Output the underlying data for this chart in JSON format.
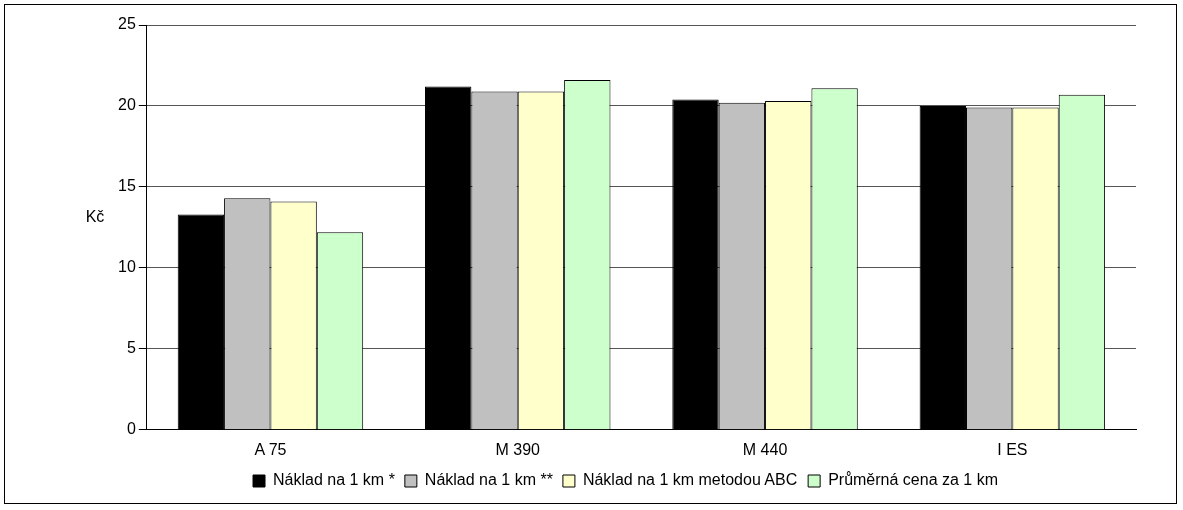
{
  "chart_data": {
    "type": "bar",
    "ylabel": "Kč",
    "categories": [
      "A 75",
      "M 390",
      "M 440",
      "I ES"
    ],
    "series": [
      {
        "name": "Náklad na 1 km *",
        "color": "#000000",
        "values": [
          13.3,
          21.2,
          20.4,
          20.0
        ]
      },
      {
        "name": "Náklad na 1 km **",
        "color": "#c0c0c0",
        "values": [
          14.3,
          20.9,
          20.2,
          19.9
        ]
      },
      {
        "name": "Náklad na 1 km metodou ABC",
        "color": "#ffffcc",
        "values": [
          14.1,
          20.9,
          20.3,
          19.9
        ]
      },
      {
        "name": "Průměrná cena za 1 km",
        "color": "#ccffcc",
        "values": [
          12.2,
          21.6,
          21.1,
          20.7
        ]
      }
    ],
    "ylim": [
      0,
      25
    ],
    "yticks": [
      0,
      5,
      10,
      15,
      20,
      25
    ],
    "grid": "y",
    "legend": "bottom"
  }
}
